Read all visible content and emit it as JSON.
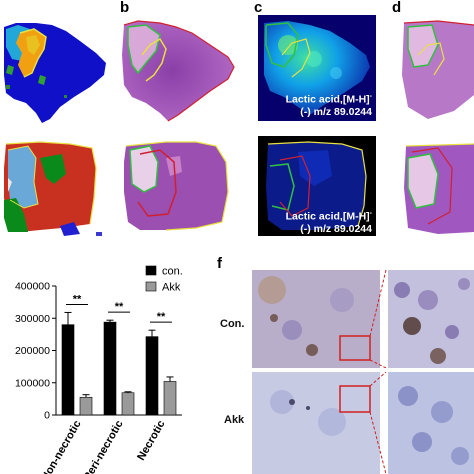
{
  "panels": {
    "b": "b",
    "c": "c",
    "d": "d",
    "f": "f"
  },
  "panel_c": {
    "top_label_line1": "Lactic acid,[M-H]",
    "top_label_line2": "(-) m/z 89.0244",
    "bottom_label_line1": "Lactic acid,[M-H]",
    "bottom_label_line2": "(-) m/z 89.0244",
    "superscript": "-"
  },
  "panel_f": {
    "row1_label": "Con.",
    "row2_label": "Akk"
  },
  "colors": {
    "con_bar": "#000000",
    "akk_bar": "#9a9a9a",
    "he_stain": "#9b4fb0",
    "msi_background": "#05006b",
    "ihc_background": "#c9cce0"
  },
  "chart_data": {
    "type": "bar",
    "categories": [
      "Non-necrotic",
      "Peri-necrotic",
      "Necrotic"
    ],
    "series": [
      {
        "name": "con.",
        "values": [
          280000,
          288000,
          243000
        ],
        "errors": [
          38000,
          6000,
          20000
        ]
      },
      {
        "name": "Akk",
        "values": [
          55000,
          69000,
          104000
        ],
        "errors": [
          8000,
          3000,
          14000
        ]
      }
    ],
    "significance": [
      "**",
      "**",
      "**"
    ],
    "yticks": [
      "0",
      "100000",
      "200000",
      "300000",
      "400000"
    ],
    "ylim": [
      0,
      400000
    ],
    "legend_position": "top-right"
  }
}
